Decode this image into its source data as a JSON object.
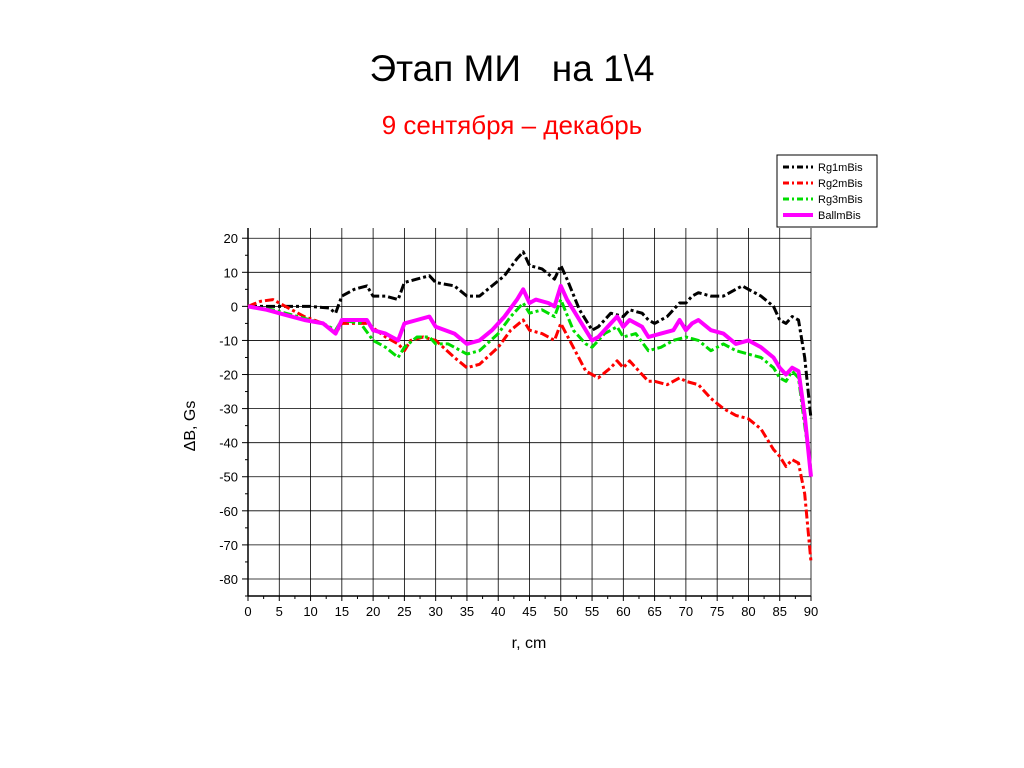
{
  "title": "Этап МИ   на 1\\4",
  "subtitle": "9 сентября – декабрь",
  "subtitle_color": "#ff0000",
  "chart_data": {
    "type": "line",
    "xlabel": "r, cm",
    "ylabel": "ΔB, Gs",
    "xlim": [
      0,
      90
    ],
    "ylim": [
      -85,
      23
    ],
    "x_ticks": [
      0,
      5,
      10,
      15,
      20,
      25,
      30,
      35,
      40,
      45,
      50,
      55,
      60,
      65,
      70,
      75,
      80,
      85,
      90
    ],
    "y_ticks": [
      20,
      10,
      0,
      -10,
      -20,
      -30,
      -40,
      -50,
      -60,
      -70,
      -80
    ],
    "grid": true,
    "legend_position": "top-right",
    "series": [
      {
        "name": "Rg1mBis",
        "color": "#000000",
        "style": "dash-dot",
        "points": [
          [
            0,
            0
          ],
          [
            5,
            0
          ],
          [
            10,
            0
          ],
          [
            13,
            -0.5
          ],
          [
            14,
            -2
          ],
          [
            15,
            3
          ],
          [
            17,
            5
          ],
          [
            19,
            6
          ],
          [
            20,
            3
          ],
          [
            22,
            3
          ],
          [
            24,
            2
          ],
          [
            25,
            7
          ],
          [
            27,
            8
          ],
          [
            29,
            9
          ],
          [
            30,
            7
          ],
          [
            33,
            6
          ],
          [
            35,
            3
          ],
          [
            37,
            3
          ],
          [
            39,
            6
          ],
          [
            41,
            9
          ],
          [
            43,
            14
          ],
          [
            44,
            16
          ],
          [
            45,
            12
          ],
          [
            47,
            11
          ],
          [
            49,
            8
          ],
          [
            50,
            12
          ],
          [
            51,
            8
          ],
          [
            53,
            -1
          ],
          [
            55,
            -7
          ],
          [
            56,
            -6
          ],
          [
            58,
            -2
          ],
          [
            60,
            -3
          ],
          [
            61,
            -1
          ],
          [
            63,
            -2
          ],
          [
            64,
            -4
          ],
          [
            65,
            -5
          ],
          [
            67,
            -3
          ],
          [
            69,
            1
          ],
          [
            70,
            1
          ],
          [
            71,
            3
          ],
          [
            72,
            4
          ],
          [
            74,
            3
          ],
          [
            76,
            3
          ],
          [
            78,
            5
          ],
          [
            79,
            6
          ],
          [
            80,
            5
          ],
          [
            82,
            3
          ],
          [
            84,
            0
          ],
          [
            85,
            -4
          ],
          [
            86,
            -5
          ],
          [
            87,
            -3
          ],
          [
            88,
            -4
          ],
          [
            89,
            -15
          ],
          [
            90,
            -33
          ]
        ]
      },
      {
        "name": "Rg2mBis",
        "color": "#ff0000",
        "style": "dash-dot",
        "points": [
          [
            0,
            0
          ],
          [
            2,
            1.5
          ],
          [
            4,
            2
          ],
          [
            6,
            0
          ],
          [
            9,
            -3
          ],
          [
            12,
            -5
          ],
          [
            14,
            -8
          ],
          [
            15,
            -5
          ],
          [
            17,
            -5
          ],
          [
            19,
            -5
          ],
          [
            22,
            -9
          ],
          [
            24,
            -11
          ],
          [
            25,
            -13
          ],
          [
            26,
            -10
          ],
          [
            28,
            -9
          ],
          [
            30,
            -10
          ],
          [
            33,
            -15
          ],
          [
            35,
            -18
          ],
          [
            37,
            -17
          ],
          [
            40,
            -12
          ],
          [
            42,
            -7
          ],
          [
            44,
            -4
          ],
          [
            45,
            -7
          ],
          [
            47,
            -8
          ],
          [
            49,
            -10
          ],
          [
            50,
            -5
          ],
          [
            52,
            -12
          ],
          [
            54,
            -19
          ],
          [
            56,
            -21
          ],
          [
            58,
            -18
          ],
          [
            59,
            -16
          ],
          [
            60,
            -18
          ],
          [
            61,
            -16
          ],
          [
            63,
            -20
          ],
          [
            64,
            -22
          ],
          [
            65,
            -22
          ],
          [
            67,
            -23
          ],
          [
            69,
            -21
          ],
          [
            70,
            -22
          ],
          [
            72,
            -23
          ],
          [
            74,
            -27
          ],
          [
            76,
            -30
          ],
          [
            78,
            -32
          ],
          [
            80,
            -33
          ],
          [
            82,
            -36
          ],
          [
            84,
            -42
          ],
          [
            85,
            -44
          ],
          [
            86,
            -47
          ],
          [
            87,
            -45
          ],
          [
            88,
            -46
          ],
          [
            89,
            -55
          ],
          [
            90,
            -75
          ]
        ]
      },
      {
        "name": "Rg3mBis",
        "color": "#00dd00",
        "style": "dash-dot",
        "points": [
          [
            0,
            0
          ],
          [
            4,
            -1
          ],
          [
            8,
            -3
          ],
          [
            12,
            -5
          ],
          [
            14,
            -7
          ],
          [
            15,
            -4
          ],
          [
            18,
            -5
          ],
          [
            20,
            -10
          ],
          [
            22,
            -12
          ],
          [
            24,
            -15
          ],
          [
            25,
            -12
          ],
          [
            27,
            -9
          ],
          [
            29,
            -9
          ],
          [
            30,
            -11
          ],
          [
            32,
            -11
          ],
          [
            34,
            -13
          ],
          [
            35,
            -14
          ],
          [
            37,
            -13
          ],
          [
            40,
            -8
          ],
          [
            42,
            -3
          ],
          [
            44,
            1
          ],
          [
            45,
            -2
          ],
          [
            47,
            -1
          ],
          [
            49,
            -3
          ],
          [
            50,
            2
          ],
          [
            52,
            -7
          ],
          [
            54,
            -11
          ],
          [
            55,
            -12
          ],
          [
            57,
            -8
          ],
          [
            59,
            -6
          ],
          [
            60,
            -9
          ],
          [
            62,
            -8
          ],
          [
            64,
            -13
          ],
          [
            66,
            -12
          ],
          [
            68,
            -10
          ],
          [
            70,
            -9
          ],
          [
            72,
            -10
          ],
          [
            74,
            -13
          ],
          [
            76,
            -11
          ],
          [
            78,
            -13
          ],
          [
            80,
            -14
          ],
          [
            82,
            -15
          ],
          [
            84,
            -18
          ],
          [
            85,
            -21
          ],
          [
            86,
            -22
          ],
          [
            87,
            -19
          ],
          [
            88,
            -21
          ],
          [
            89,
            -35
          ],
          [
            90,
            -48
          ]
        ]
      },
      {
        "name": "BallmBis",
        "color": "#ff00ff",
        "style": "solid",
        "points": [
          [
            0,
            0
          ],
          [
            3,
            -1
          ],
          [
            6,
            -2.5
          ],
          [
            9,
            -4
          ],
          [
            12,
            -5
          ],
          [
            14,
            -8
          ],
          [
            15,
            -4
          ],
          [
            17,
            -4
          ],
          [
            19,
            -4
          ],
          [
            20,
            -7
          ],
          [
            22,
            -8
          ],
          [
            24,
            -10
          ],
          [
            25,
            -5
          ],
          [
            27,
            -4
          ],
          [
            29,
            -3
          ],
          [
            30,
            -6
          ],
          [
            33,
            -8
          ],
          [
            35,
            -11
          ],
          [
            37,
            -10
          ],
          [
            39,
            -7
          ],
          [
            41,
            -3
          ],
          [
            43,
            2
          ],
          [
            44,
            5
          ],
          [
            45,
            1
          ],
          [
            46,
            2
          ],
          [
            48,
            1
          ],
          [
            49,
            0
          ],
          [
            50,
            6
          ],
          [
            51,
            2
          ],
          [
            53,
            -4
          ],
          [
            55,
            -10
          ],
          [
            56,
            -9
          ],
          [
            58,
            -5
          ],
          [
            59,
            -3
          ],
          [
            60,
            -6
          ],
          [
            61,
            -4
          ],
          [
            63,
            -6
          ],
          [
            64,
            -9
          ],
          [
            66,
            -8
          ],
          [
            68,
            -7
          ],
          [
            69,
            -4
          ],
          [
            70,
            -7
          ],
          [
            71,
            -5
          ],
          [
            72,
            -4
          ],
          [
            74,
            -7
          ],
          [
            76,
            -8
          ],
          [
            78,
            -11
          ],
          [
            80,
            -10
          ],
          [
            82,
            -12
          ],
          [
            84,
            -15
          ],
          [
            85,
            -18
          ],
          [
            86,
            -20
          ],
          [
            87,
            -18
          ],
          [
            88,
            -19
          ],
          [
            89,
            -32
          ],
          [
            90,
            -50
          ]
        ]
      }
    ]
  }
}
